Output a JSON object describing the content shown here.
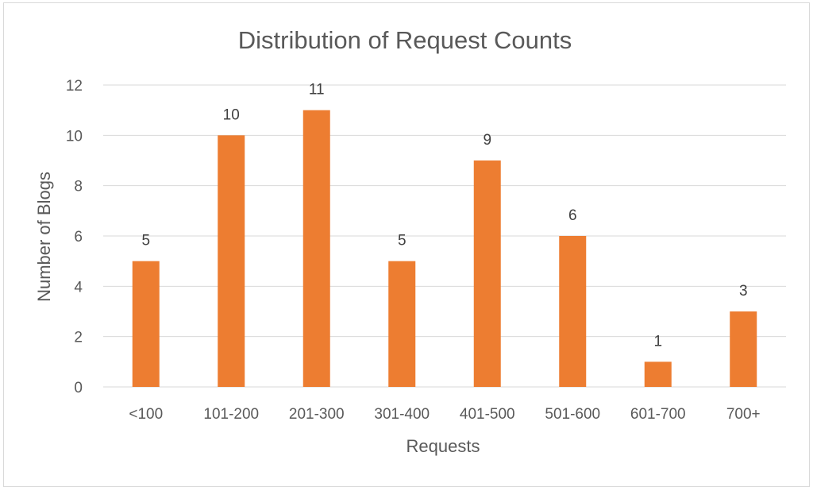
{
  "chart_data": {
    "type": "bar",
    "title": "Distribution of Request Counts",
    "xlabel": "Requests",
    "ylabel": "Number of Blogs",
    "categories": [
      "<100",
      "101-200",
      "201-300",
      "301-400",
      "401-500",
      "501-600",
      "601-700",
      "700+"
    ],
    "values": [
      5,
      10,
      11,
      5,
      9,
      6,
      1,
      3
    ],
    "ylim": [
      0,
      12
    ],
    "yticks": [
      0,
      2,
      4,
      6,
      8,
      10,
      12
    ],
    "grid": true,
    "legend": "none",
    "data_labels": true,
    "bar_color": "#ED7D31"
  }
}
